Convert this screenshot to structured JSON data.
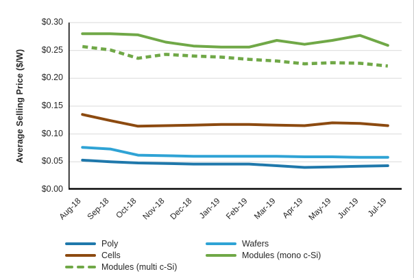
{
  "chart_data": {
    "type": "line",
    "title": "",
    "xlabel": "",
    "ylabel": "Average Selling Price ($/W)",
    "ylim": [
      0,
      0.3
    ],
    "ytick_step": 0.05,
    "ytick_labels": [
      "$0.00",
      "$0.05",
      "$0.10",
      "$0.15",
      "$0.20",
      "$0.25",
      "$0.30"
    ],
    "grid": "horizontal",
    "gridline_color": "#d9d9d9",
    "axis_color": "#000000",
    "legend_position": "bottom",
    "categories": [
      "Aug-18",
      "Sep-18",
      "Oct-18",
      "Nov-18",
      "Dec-18",
      "Jan-19",
      "Feb-19",
      "Mar-19",
      "Apr-19",
      "May-19",
      "Jun-19",
      "Jul-19"
    ],
    "series": [
      {
        "name": "Poly",
        "color": "#1f78ab",
        "style": "solid",
        "values": [
          0.053,
          0.05,
          0.048,
          0.047,
          0.046,
          0.046,
          0.046,
          0.043,
          0.04,
          0.041,
          0.042,
          0.043
        ]
      },
      {
        "name": "Wafers",
        "color": "#2fa3d5",
        "style": "solid",
        "values": [
          0.076,
          0.073,
          0.062,
          0.061,
          0.06,
          0.06,
          0.06,
          0.06,
          0.059,
          0.059,
          0.058,
          0.058
        ]
      },
      {
        "name": "Cells",
        "color": "#8c4a10",
        "style": "solid",
        "values": [
          0.135,
          0.124,
          0.114,
          0.115,
          0.116,
          0.117,
          0.117,
          0.116,
          0.115,
          0.12,
          0.119,
          0.115
        ]
      },
      {
        "name": "Modules (mono c-Si)",
        "color": "#70a847",
        "style": "solid",
        "values": [
          0.28,
          0.28,
          0.278,
          0.265,
          0.258,
          0.256,
          0.256,
          0.268,
          0.261,
          0.268,
          0.277,
          0.259
        ]
      },
      {
        "name": "Modules (multi c-Si)",
        "color": "#70a847",
        "style": "dashed",
        "values": [
          0.257,
          0.251,
          0.236,
          0.243,
          0.24,
          0.238,
          0.234,
          0.231,
          0.226,
          0.228,
          0.227,
          0.222
        ]
      }
    ]
  }
}
